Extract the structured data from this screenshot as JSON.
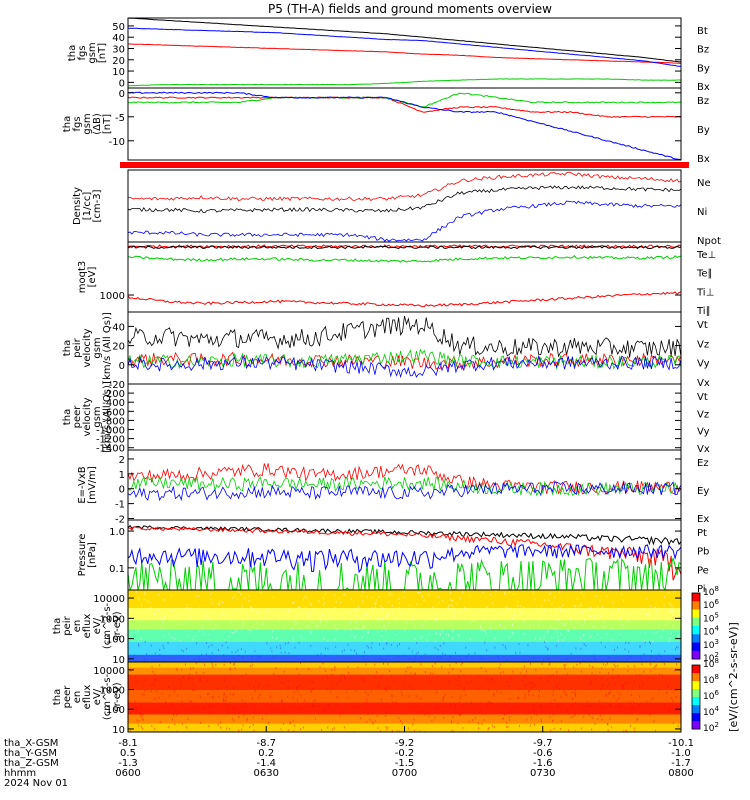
{
  "title": "P5 (TH-A) fields and ground moments overview",
  "colors": {
    "black": "#000000",
    "red": "#ff0000",
    "green": "#00d000",
    "blue": "#0000ff"
  },
  "chart_data": [
    {
      "type": "line",
      "ylabel": [
        "tha",
        "fgs",
        "gsm",
        "[nT]"
      ],
      "yticks": [
        0,
        10,
        20,
        30,
        40,
        50
      ],
      "ylim": [
        -5,
        57
      ],
      "series": [
        {
          "name": "Bt",
          "color": "black",
          "values": [
            57,
            55,
            53,
            51,
            49,
            47,
            45,
            43,
            40,
            37,
            34,
            31,
            28,
            25,
            22,
            18
          ]
        },
        {
          "name": "Bz",
          "color": "red",
          "values": [
            34,
            33,
            32,
            31,
            30,
            29,
            28,
            27,
            25,
            24,
            22,
            21,
            20,
            19,
            18,
            17
          ]
        },
        {
          "name": "By",
          "color": "green",
          "values": [
            -3,
            -2,
            -2,
            -2,
            -2,
            -2,
            -2,
            -1,
            1,
            2,
            3,
            3,
            3,
            3,
            2,
            2
          ]
        },
        {
          "name": "Bx",
          "color": "blue",
          "values": [
            48,
            47,
            46,
            45,
            44,
            42,
            40,
            38,
            37,
            34,
            31,
            28,
            25,
            22,
            19,
            14
          ]
        }
      ]
    },
    {
      "type": "line",
      "ylabel": [
        "tha",
        "fgs",
        "gsm",
        "(ΔB)",
        "[nT]"
      ],
      "yticks": [
        0,
        -5,
        -10
      ],
      "ylim": [
        -14,
        1
      ],
      "series": [
        {
          "name": "Bz",
          "color": "red",
          "values": [
            -1,
            -1,
            -1,
            -1,
            -1,
            -1,
            -1,
            -1,
            -4,
            -3,
            -3,
            -4,
            -4,
            -5,
            -5,
            -5
          ]
        },
        {
          "name": "By",
          "color": "green",
          "values": [
            -2,
            -2,
            -2,
            -2,
            -1,
            -1,
            -1,
            -1,
            -3,
            0,
            -1,
            -2,
            -2,
            -2,
            -2,
            -2
          ]
        },
        {
          "name": "Bx",
          "color": "blue",
          "values": [
            0,
            0,
            0,
            0,
            -1,
            -1,
            -1,
            -1,
            -3,
            -4,
            -4,
            -6,
            -8,
            -10,
            -12,
            -14
          ]
        }
      ]
    },
    {
      "type": "bar",
      "ylabel": [],
      "series": [
        {
          "name": "",
          "color": "red",
          "values": [
            1
          ]
        }
      ]
    },
    {
      "type": "line",
      "ylabel": [
        "Density",
        "[1/cc]",
        "[cm-3]"
      ],
      "yticks": [],
      "ylim": [
        0,
        10
      ],
      "series": [
        {
          "name": "Ne",
          "color": "red",
          "values": [
            6,
            6,
            6.2,
            6,
            6,
            6,
            6,
            6,
            6.5,
            8.5,
            9,
            9.3,
            9.5,
            9,
            8.8,
            8.5
          ]
        },
        {
          "name": "Ni",
          "color": "black",
          "values": [
            4.5,
            4.5,
            4.3,
            4.4,
            4.5,
            4.5,
            4.4,
            4.3,
            4.8,
            6.8,
            7.2,
            7.5,
            7.6,
            7.5,
            7.3,
            7.2
          ]
        },
        {
          "name": "Npot",
          "color": "blue",
          "values": [
            1.3,
            1.3,
            1,
            1,
            1,
            1,
            1,
            0.3,
            0.3,
            3.5,
            4.5,
            5,
            5.5,
            5.2,
            5,
            5
          ]
        }
      ]
    },
    {
      "type": "line",
      "ylabel": [
        "moqt3",
        "[eV]"
      ],
      "yticks": [
        1000
      ],
      "ylim": [
        200,
        3500
      ],
      "series": [
        {
          "name": "Te⊥",
          "color": "red",
          "values": [
            3300,
            3300,
            3300,
            3300,
            3300,
            3300,
            3300,
            3300,
            3300,
            3300,
            3300,
            3300,
            3300,
            3300,
            3300,
            3300
          ]
        },
        {
          "name": "Te∥",
          "color": "black",
          "values": [
            3250,
            3250,
            3250,
            3250,
            3250,
            3250,
            3250,
            3250,
            3250,
            3250,
            3250,
            3250,
            3250,
            3250,
            3250,
            3250
          ]
        },
        {
          "name": "Ti⊥",
          "color": "red",
          "values": [
            900,
            700,
            600,
            650,
            700,
            650,
            600,
            550,
            500,
            550,
            650,
            750,
            850,
            950,
            1050,
            1100
          ]
        },
        {
          "name": "Ti∥",
          "color": "green",
          "values": [
            2800,
            2700,
            2650,
            2700,
            2700,
            2650,
            2650,
            2600,
            2600,
            2700,
            2750,
            2750,
            2800,
            2750,
            2750,
            2800
          ]
        }
      ]
    },
    {
      "type": "line",
      "ylabel": [
        "tha",
        "peir",
        "velocity",
        "gsm",
        "[km/s (All Qs)]"
      ],
      "yticks": [
        -20,
        0,
        20,
        40
      ],
      "ylim": [
        -20,
        55
      ],
      "series": [
        {
          "name": "Vt",
          "color": "black",
          "values": [
            28,
            30,
            26,
            28,
            27,
            28,
            35,
            40,
            42,
            20,
            18,
            18,
            19,
            18,
            17,
            18
          ]
        },
        {
          "name": "Vz",
          "color": "red",
          "values": [
            5,
            6,
            5,
            6,
            5,
            5,
            4,
            4,
            2,
            2,
            3,
            5,
            5,
            5,
            5,
            5
          ]
        },
        {
          "name": "Vy",
          "color": "green",
          "values": [
            3,
            4,
            3,
            5,
            4,
            3,
            6,
            8,
            10,
            4,
            3,
            3,
            3,
            3,
            3,
            3
          ]
        },
        {
          "name": "Vx",
          "color": "blue",
          "values": [
            2,
            0,
            1,
            2,
            2,
            0,
            -2,
            -5,
            -8,
            0,
            2,
            2,
            2,
            2,
            2,
            2
          ]
        }
      ]
    },
    {
      "type": "line",
      "ylabel": [
        "tha",
        "peer",
        "velocity",
        "gsm",
        "[km/s (All Qs)]"
      ],
      "yticks": [
        -1400,
        -1200,
        -1000,
        -800,
        -600,
        -400,
        -200
      ],
      "ylim": [
        -1450,
        0
      ],
      "series": [
        {
          "name": "Vt",
          "color": "black",
          "values": []
        },
        {
          "name": "Vz",
          "color": "red",
          "values": []
        },
        {
          "name": "Vy",
          "color": "green",
          "values": []
        },
        {
          "name": "Vx",
          "color": "blue",
          "values": []
        }
      ]
    },
    {
      "type": "line",
      "ylabel": [
        "E=-VxB",
        "[mV/m]"
      ],
      "yticks": [
        -2,
        -1,
        0,
        1,
        2
      ],
      "ylim": [
        -2.1,
        2.6
      ],
      "series": [
        {
          "name": "Ez",
          "color": "red",
          "values": [
            0.8,
            0.9,
            1,
            1.2,
            1.3,
            0.9,
            1,
            1.2,
            1.3,
            0.5,
            0.2,
            0.1,
            0.1,
            0.1,
            0.1,
            0.1
          ]
        },
        {
          "name": "Ey",
          "color": "green",
          "values": [
            0.3,
            0.4,
            0.3,
            0.3,
            0.4,
            0.3,
            0.3,
            0.4,
            0.4,
            0.2,
            0,
            0,
            0,
            0,
            0,
            0
          ]
        },
        {
          "name": "Ex",
          "color": "blue",
          "values": [
            -0.4,
            -0.3,
            -0.3,
            -0.2,
            -0.2,
            -0.3,
            -0.2,
            -0.3,
            -0.3,
            -0.1,
            0,
            0,
            0,
            0,
            0,
            0
          ]
        }
      ]
    },
    {
      "type": "line",
      "ylabel": [
        "Pressure",
        "[nPa]"
      ],
      "yticks": [
        0.1,
        1.0
      ],
      "yticklabels": [
        "0.1",
        "1.0"
      ],
      "ylim": [
        0.025,
        2
      ],
      "scale": "log",
      "series": [
        {
          "name": "Pt",
          "color": "black",
          "values": [
            1.3,
            1.25,
            1.2,
            1.15,
            1.1,
            1.05,
            1,
            0.95,
            0.9,
            0.85,
            0.8,
            0.75,
            0.7,
            0.63,
            0.58,
            0.53
          ]
        },
        {
          "name": "Pb",
          "color": "red",
          "values": [
            1.2,
            1.15,
            1.1,
            1.05,
            1,
            0.95,
            0.9,
            0.85,
            0.75,
            0.65,
            0.55,
            0.45,
            0.35,
            0.28,
            0.22,
            0.15
          ]
        },
        {
          "name": "Pe",
          "color": "green",
          "values": [
            0.05,
            0.04,
            0.04,
            0.04,
            0.04,
            0.035,
            0.035,
            0.03,
            0.03,
            0.045,
            0.05,
            0.055,
            0.06,
            0.06,
            0.062,
            0.065
          ]
        },
        {
          "name": "Pi",
          "color": "blue",
          "values": [
            0.25,
            0.23,
            0.22,
            0.22,
            0.22,
            0.2,
            0.2,
            0.2,
            0.2,
            0.27,
            0.3,
            0.3,
            0.3,
            0.3,
            0.3,
            0.3
          ]
        }
      ]
    },
    {
      "type": "heatmap",
      "ylabel": [
        "tha",
        "peir",
        "en",
        "eflux",
        "eV/",
        "(cm^2-s-",
        "sr-eV)"
      ],
      "yticks": [
        10,
        100,
        1000,
        10000
      ],
      "ylim": [
        7,
        25000
      ],
      "scale": "log",
      "colorbar": {
        "ticks": [
          "10",
          "10",
          "10",
          "10",
          "10",
          "10"
        ],
        "exponents": [
          "2",
          "3",
          "4",
          "5",
          "6",
          "8"
        ],
        "label": "[eV/(cm^2-s-sr-eV)]"
      }
    },
    {
      "type": "heatmap",
      "ylabel": [
        "tha",
        "peer",
        "en",
        "eflux",
        "eV/",
        "(cm^2-s-",
        "sr-eV)"
      ],
      "yticks": [
        10,
        100,
        1000,
        10000
      ],
      "ylim": [
        7,
        25000
      ],
      "scale": "log",
      "colorbar": {
        "ticks": [
          "10",
          "10",
          "10",
          "10",
          "10"
        ],
        "exponents": [
          "2",
          "4",
          "6",
          "8",
          "8"
        ],
        "label": "[eV/(cm^2-s-sr-eV)]"
      }
    }
  ],
  "xaxis": {
    "rows": [
      {
        "label": "tha_X-GSM",
        "values": [
          "-8.1",
          "-8.7",
          "-9.2",
          "-9.7",
          "-10.1"
        ]
      },
      {
        "label": "tha_Y-GSM",
        "values": [
          "0.5",
          "0.2",
          "-0.2",
          "-0.6",
          "-1.0"
        ]
      },
      {
        "label": "tha_Z-GSM",
        "values": [
          "-1.3",
          "-1.4",
          "-1.5",
          "-1.6",
          "-1.7"
        ]
      },
      {
        "label": "hhmm",
        "values": [
          "0600",
          "0630",
          "0700",
          "0730",
          "0800"
        ]
      }
    ],
    "date": "2024 Nov 01"
  },
  "colorbar_label": "[eV/(cm^2-s-sr-eV)]"
}
